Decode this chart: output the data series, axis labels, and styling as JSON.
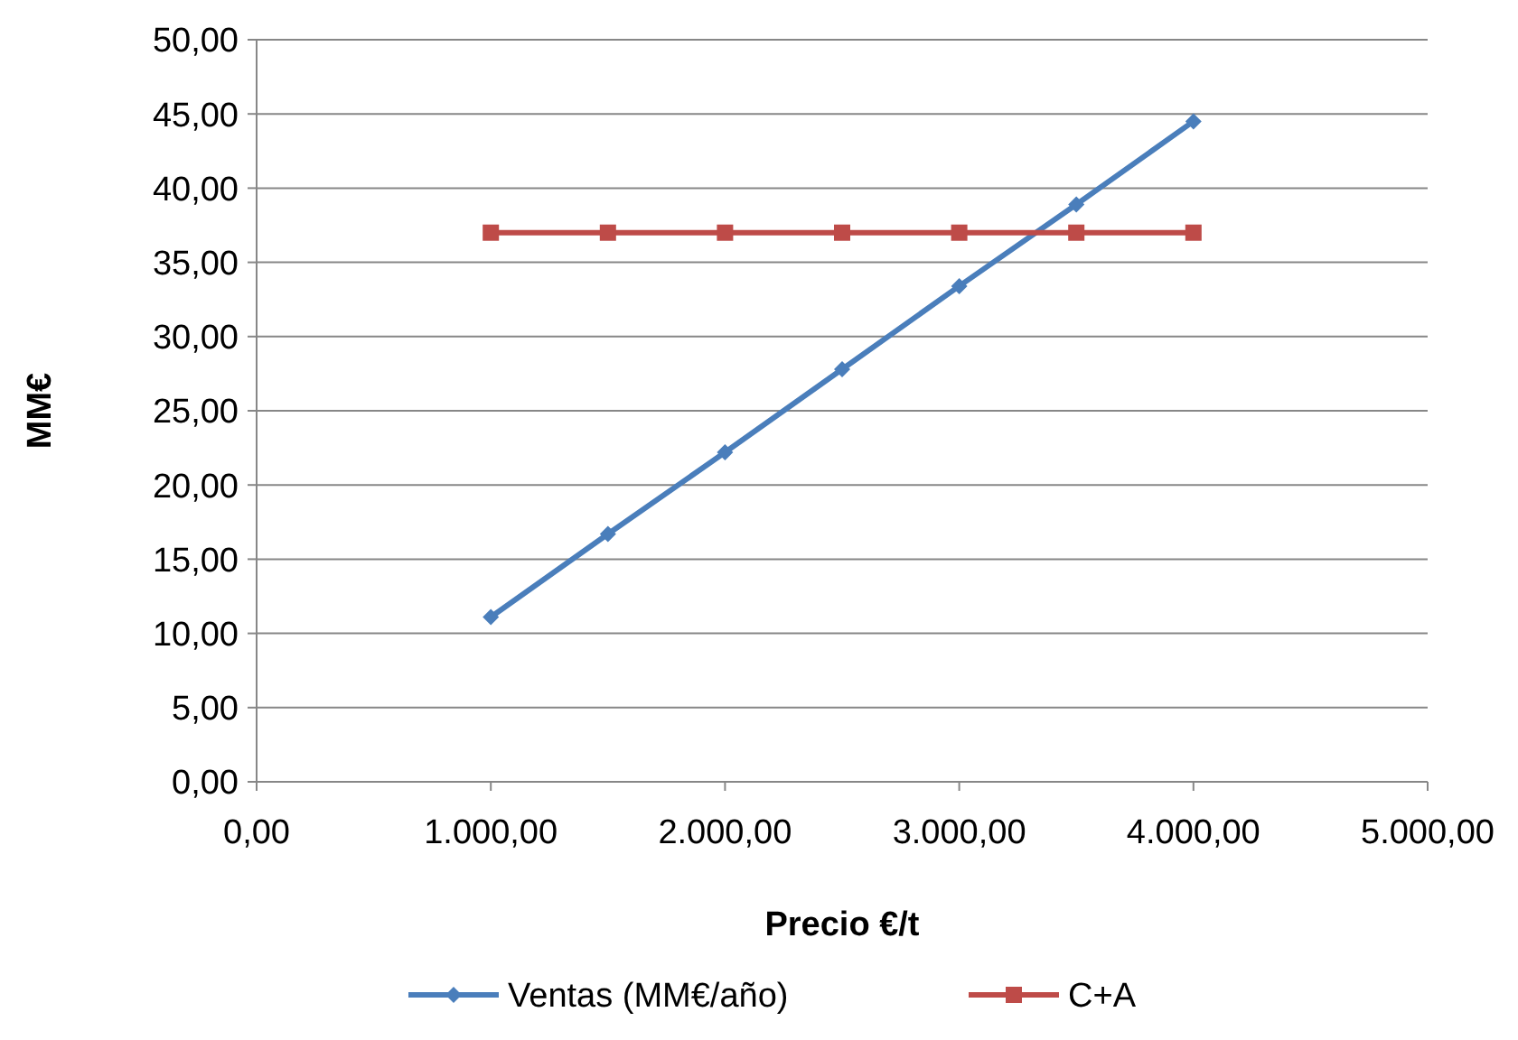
{
  "chart_data": {
    "type": "line",
    "xlabel": "Precio €/t",
    "ylabel": "MM€",
    "x": [
      1000,
      1500,
      2000,
      2500,
      3000,
      3500,
      4000
    ],
    "series": [
      {
        "name": "Ventas (MM€/año)",
        "color": "#4a7ebb",
        "marker": "diamond",
        "values": [
          11.1,
          16.7,
          22.2,
          27.8,
          33.4,
          38.9,
          44.5
        ]
      },
      {
        "name": "C+A",
        "color": "#be4b48",
        "marker": "square",
        "values": [
          37,
          37,
          37,
          37,
          37,
          37,
          37
        ]
      }
    ],
    "xlim": [
      0,
      5000
    ],
    "xticks": [
      {
        "value": 0,
        "label": "0,00"
      },
      {
        "value": 1000,
        "label": "1.000,00"
      },
      {
        "value": 2000,
        "label": "2.000,00"
      },
      {
        "value": 3000,
        "label": "3.000,00"
      },
      {
        "value": 4000,
        "label": "4.000,00"
      },
      {
        "value": 5000,
        "label": "5.000,00"
      }
    ],
    "ylim": [
      0,
      50
    ],
    "yticks": [
      {
        "value": 0,
        "label": "0,00"
      },
      {
        "value": 5,
        "label": "5,00"
      },
      {
        "value": 10,
        "label": "10,00"
      },
      {
        "value": 15,
        "label": "15,00"
      },
      {
        "value": 20,
        "label": "20,00"
      },
      {
        "value": 25,
        "label": "25,00"
      },
      {
        "value": 30,
        "label": "30,00"
      },
      {
        "value": 35,
        "label": "35,00"
      },
      {
        "value": 40,
        "label": "40,00"
      },
      {
        "value": 45,
        "label": "45,00"
      },
      {
        "value": 50,
        "label": "50,00"
      }
    ],
    "grid": "y",
    "legend": "bottom",
    "line_style": "solid"
  }
}
